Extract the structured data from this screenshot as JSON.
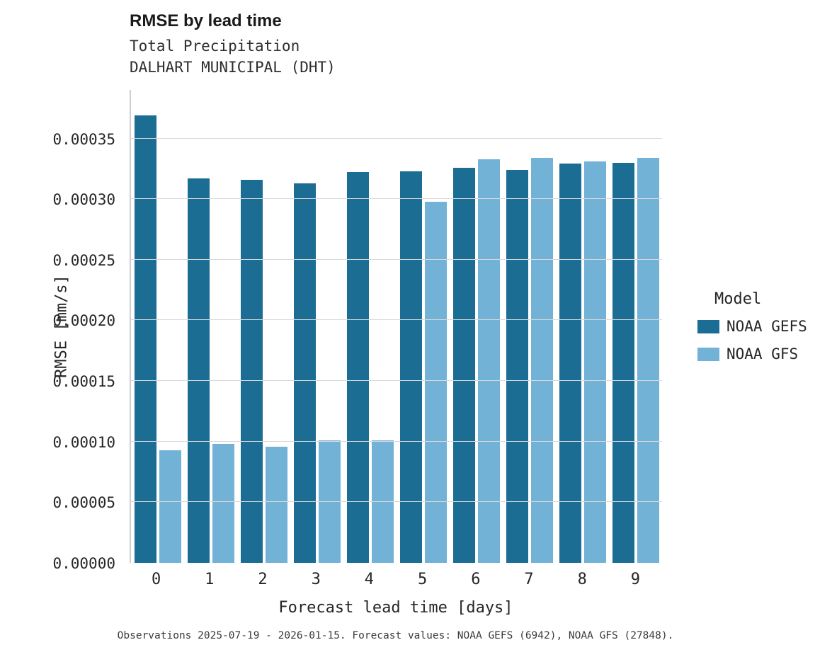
{
  "header": {
    "title": "RMSE by lead time",
    "subtitle1": "Total Precipitation",
    "subtitle2": "DALHART MUNICIPAL (DHT)"
  },
  "legend": {
    "title": "Model",
    "entries": [
      {
        "label": "NOAA GEFS",
        "color": "#1b6d93"
      },
      {
        "label": "NOAA GFS",
        "color": "#72b2d7"
      }
    ]
  },
  "caption": "Observations 2025-07-19 - 2026-01-15. Forecast values: NOAA GEFS (6942), NOAA GFS (27848).",
  "chart_data": {
    "type": "bar",
    "title": "RMSE by lead time",
    "subtitle": "Total Precipitation — DALHART MUNICIPAL (DHT)",
    "xlabel": "Forecast lead time [days]",
    "ylabel": "RMSE [mm/s]",
    "categories": [
      "0",
      "1",
      "2",
      "3",
      "4",
      "5",
      "6",
      "7",
      "8",
      "9"
    ],
    "series": [
      {
        "name": "NOAA GEFS",
        "color": "#1b6d93",
        "values": [
          0.000369,
          0.000317,
          0.000316,
          0.000313,
          0.000322,
          0.000323,
          0.000326,
          0.000324,
          0.000329,
          0.00033
        ]
      },
      {
        "name": "NOAA GFS",
        "color": "#72b2d7",
        "values": [
          9.3e-05,
          9.8e-05,
          9.6e-05,
          0.000101,
          0.000101,
          0.000298,
          0.000333,
          0.000334,
          0.000331,
          0.000334
        ]
      }
    ],
    "ylim": [
      0,
      0.00039
    ],
    "yticks": [
      0.0,
      5e-05,
      0.0001,
      0.00015,
      0.0002,
      0.00025,
      0.0003,
      0.00035
    ],
    "ytick_labels": [
      "0.00000",
      "0.00005",
      "0.00010",
      "0.00015",
      "0.00020",
      "0.00025",
      "0.00030",
      "0.00035"
    ],
    "grid": true,
    "legend_position": "right"
  }
}
